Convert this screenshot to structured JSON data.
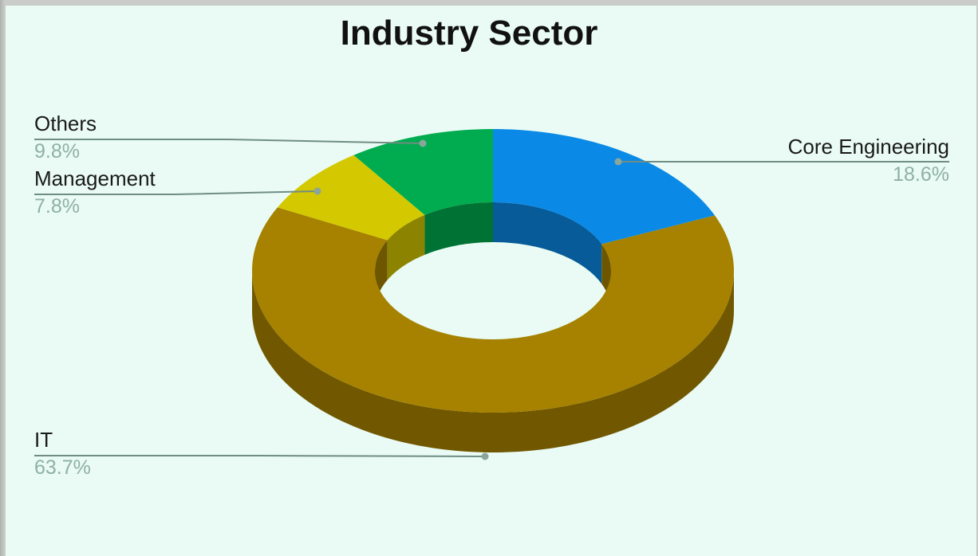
{
  "chart_data": {
    "type": "pie",
    "title": "Industry Sector",
    "style": "3d-donut",
    "legend": "none",
    "slices": [
      {
        "label": "Core Engineering",
        "value": 18.6,
        "value_label": "18.6%",
        "color": "#0a8ae6"
      },
      {
        "label": "IT",
        "value": 63.7,
        "value_label": "63.7%",
        "color": "#a68200"
      },
      {
        "label": "Management",
        "value": 7.8,
        "value_label": "7.8%",
        "color": "#d4c800"
      },
      {
        "label": "Others",
        "value": 9.8,
        "value_label": "9.8%",
        "color": "#00ac4f"
      }
    ]
  },
  "colors": {
    "background": "#e9fbf4",
    "leader_line": "#6f8d83",
    "percent_text": "#8fb0a4"
  }
}
